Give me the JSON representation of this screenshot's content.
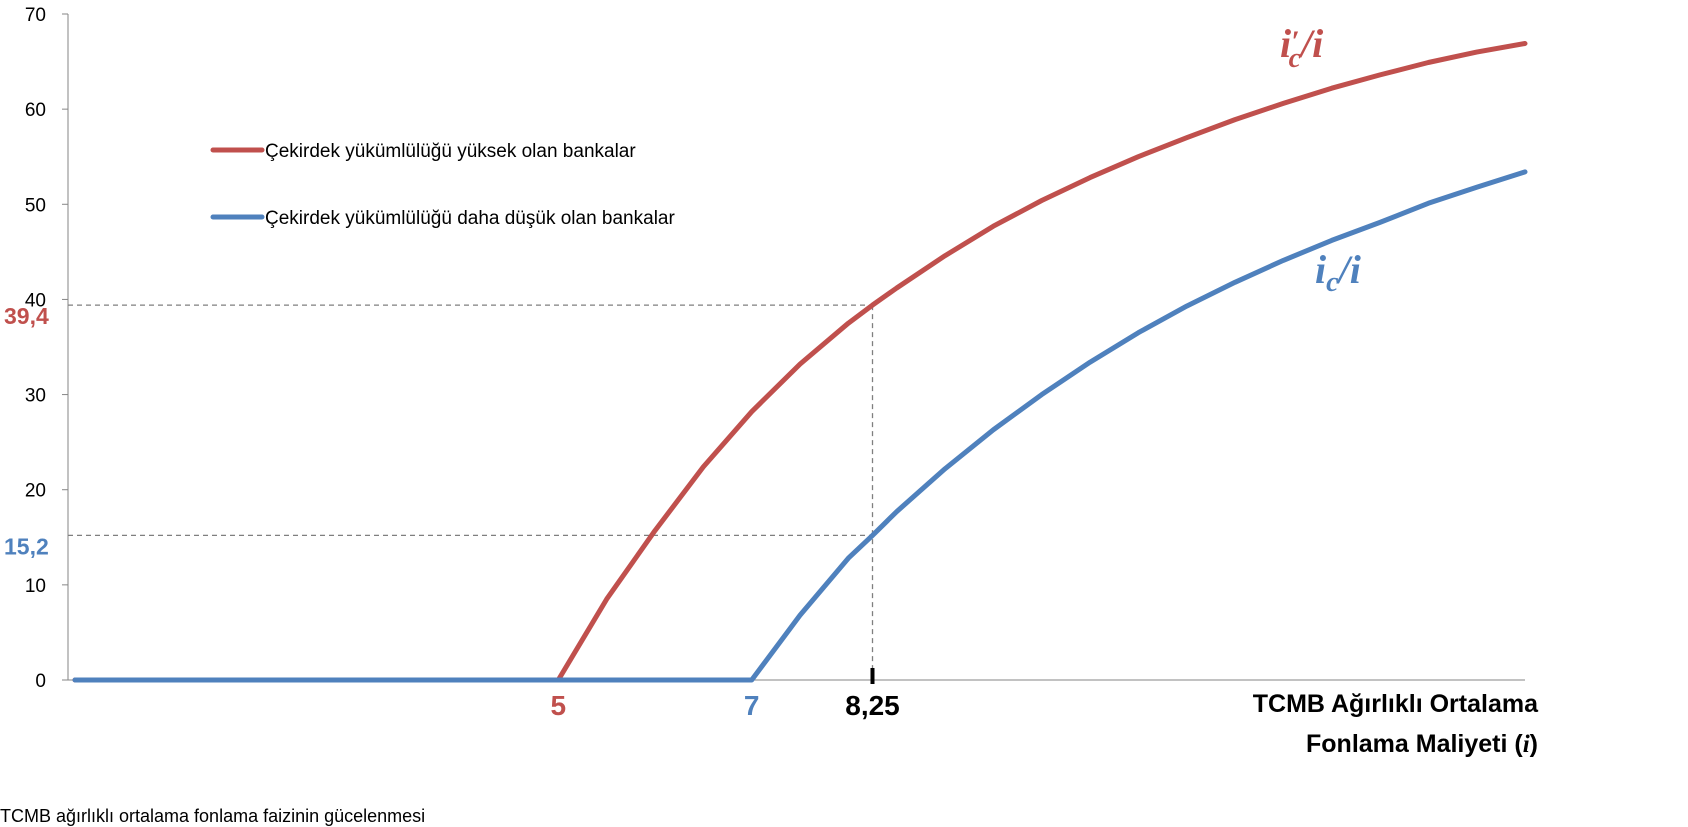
{
  "chart_data": {
    "type": "line",
    "xlabel_lines": [
      "TCMB Ağırlıklı Ortalama",
      "Fonlama Maliyeti (",
      "i",
      ")"
    ],
    "ylabel": "",
    "ylim": [
      0,
      70
    ],
    "xlim": [
      0,
      15
    ],
    "yticks": [
      "0",
      "10",
      "20",
      "30",
      "40",
      "50",
      "60",
      "70"
    ],
    "grid": false,
    "legend_position": "top-left",
    "series": [
      {
        "name": "Çekirdek yükümlülüğü yüksek olan bankalar",
        "color": "#c0504d",
        "curve_label": [
          "i",
          "′",
          "c",
          "/",
          "i"
        ],
        "x": [
          0,
          5,
          5.5,
          6,
          6.5,
          7,
          7.5,
          8,
          8.25,
          8.5,
          9,
          9.5,
          10,
          10.5,
          11,
          11.5,
          12,
          12.5,
          13,
          13.5,
          14,
          14.5,
          15
        ],
        "y": [
          0,
          0,
          8.5,
          15.7,
          22.4,
          28.2,
          33.2,
          37.5,
          39.4,
          41.2,
          44.6,
          47.7,
          50.4,
          52.8,
          55.0,
          57.0,
          58.9,
          60.6,
          62.2,
          63.6,
          64.9,
          66.0,
          66.9
        ]
      },
      {
        "name": "Çekirdek yükümlülüğü daha düşük olan bankalar",
        "color": "#4f81bd",
        "curve_label": [
          "i",
          "c",
          "/",
          "i"
        ],
        "x": [
          0,
          7,
          7.5,
          8,
          8.25,
          8.5,
          9,
          9.5,
          10,
          10.5,
          11,
          11.5,
          12,
          12.5,
          13,
          13.5,
          14,
          14.5,
          15
        ],
        "y": [
          0,
          0,
          6.8,
          12.8,
          15.2,
          17.7,
          22.2,
          26.3,
          30.0,
          33.4,
          36.5,
          39.3,
          41.8,
          44.1,
          46.2,
          48.1,
          50.1,
          51.8,
          53.4
        ]
      }
    ],
    "annotations": {
      "x_markers": [
        {
          "value": 5,
          "label": "5",
          "color": "#c0504d"
        },
        {
          "value": 7,
          "label": "7",
          "color": "#4f81bd"
        },
        {
          "value": 8.25,
          "label": "8,25",
          "color": "#000000"
        }
      ],
      "y_markers": [
        {
          "value": 39.4,
          "label": "39,4",
          "color": "#c0504d"
        },
        {
          "value": 15.2,
          "label": "15,2",
          "color": "#4f81bd"
        }
      ]
    },
    "footnote": "TCMB ağırlıklı ortalama fonlama faizinin gücelenmesi"
  }
}
